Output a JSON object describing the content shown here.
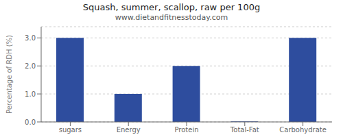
{
  "chart_data": {
    "type": "bar",
    "title": "Squash, summer, scallop, raw per 100g",
    "subtitle": "www.dietandfitnesstoday.com",
    "categories": [
      "sugars",
      "Energy",
      "Protein",
      "Total-Fat",
      "Carbohydrate"
    ],
    "values": [
      3.0,
      1.0,
      2.0,
      0.02,
      3.0
    ],
    "color": "#2e4d9e",
    "ylabel": "Percentage of RDH (%)",
    "ylim": [
      0,
      3.4
    ],
    "yticks": [
      {
        "value": 0.0,
        "label": "0.0"
      },
      {
        "value": 1.0,
        "label": "1.0"
      },
      {
        "value": 2.0,
        "label": "2.0"
      },
      {
        "value": 3.0,
        "label": "3.0"
      }
    ],
    "grid": true
  }
}
